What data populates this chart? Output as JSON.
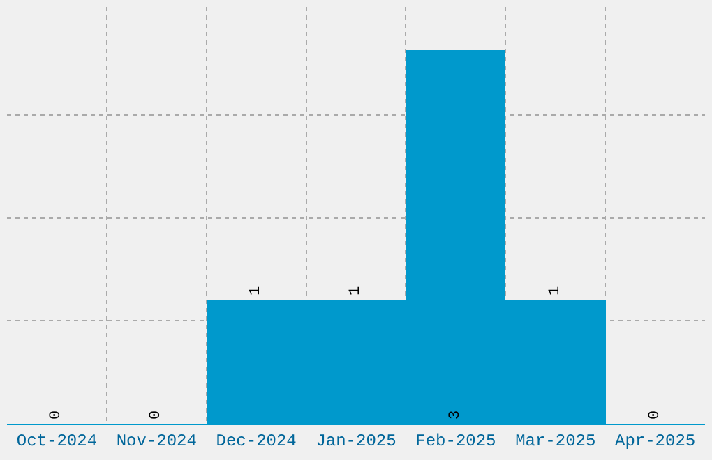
{
  "chart_data": {
    "type": "bar",
    "categories": [
      "Oct-2024",
      "Nov-2024",
      "Dec-2024",
      "Jan-2025",
      "Feb-2025",
      "Mar-2025",
      "Apr-2025"
    ],
    "values": [
      0,
      0,
      1,
      1,
      3,
      1,
      0
    ],
    "color": "#0099cc",
    "ylim": [
      0,
      3.35
    ],
    "yticks": [
      {
        "value": 0.83,
        "label": null
      },
      {
        "value": 1.65,
        "label": null
      },
      {
        "value": 2.48,
        "label": null
      }
    ],
    "grid": true,
    "tick_labels": "x",
    "data_labels": true
  }
}
